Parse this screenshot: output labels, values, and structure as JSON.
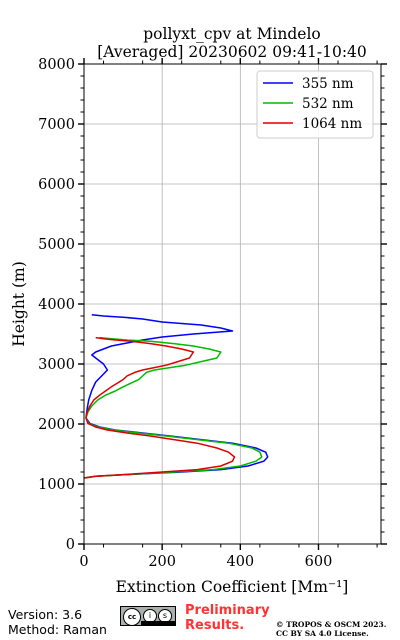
{
  "chart_data": {
    "type": "line",
    "title_lines": [
      "pollyxt_cpv at Mindelo",
      "[Averaged] 20230602 09:41-10:40"
    ],
    "xlabel": "Extinction Coefficient [Mm⁻¹]",
    "ylabel": "Height (m)",
    "xlim": [
      0,
      760
    ],
    "ylim": [
      0,
      8000
    ],
    "xticks": [
      0,
      200,
      400,
      600
    ],
    "yticks": [
      0,
      1000,
      2000,
      3000,
      4000,
      5000,
      6000,
      7000,
      8000
    ],
    "grid": true,
    "legend_position": "top-right",
    "series": [
      {
        "name": "355 nm",
        "color": "#0000ff",
        "points": [
          [
            0,
            1100
          ],
          [
            30,
            1130
          ],
          [
            120,
            1160
          ],
          [
            250,
            1200
          ],
          [
            350,
            1240
          ],
          [
            420,
            1300
          ],
          [
            460,
            1380
          ],
          [
            470,
            1450
          ],
          [
            465,
            1530
          ],
          [
            440,
            1600
          ],
          [
            380,
            1680
          ],
          [
            300,
            1740
          ],
          [
            220,
            1800
          ],
          [
            150,
            1850
          ],
          [
            80,
            1900
          ],
          [
            40,
            1950
          ],
          [
            15,
            2010
          ],
          [
            5,
            2100
          ],
          [
            8,
            2250
          ],
          [
            12,
            2400
          ],
          [
            20,
            2560
          ],
          [
            30,
            2700
          ],
          [
            45,
            2800
          ],
          [
            60,
            2900
          ],
          [
            50,
            3000
          ],
          [
            40,
            3050
          ],
          [
            30,
            3100
          ],
          [
            20,
            3150
          ],
          [
            30,
            3200
          ],
          [
            50,
            3250
          ],
          [
            70,
            3300
          ],
          [
            110,
            3350
          ],
          [
            150,
            3400
          ],
          [
            200,
            3450
          ],
          [
            280,
            3500
          ],
          [
            380,
            3550
          ],
          [
            350,
            3600
          ],
          [
            300,
            3650
          ],
          [
            200,
            3700
          ],
          [
            150,
            3750
          ],
          [
            100,
            3780
          ],
          [
            50,
            3800
          ],
          [
            20,
            3820
          ]
        ]
      },
      {
        "name": "532 nm",
        "color": "#00bb00",
        "points": [
          [
            0,
            1100
          ],
          [
            30,
            1130
          ],
          [
            120,
            1160
          ],
          [
            230,
            1200
          ],
          [
            330,
            1240
          ],
          [
            400,
            1300
          ],
          [
            440,
            1380
          ],
          [
            455,
            1450
          ],
          [
            450,
            1530
          ],
          [
            430,
            1600
          ],
          [
            370,
            1680
          ],
          [
            290,
            1740
          ],
          [
            210,
            1800
          ],
          [
            140,
            1850
          ],
          [
            75,
            1900
          ],
          [
            35,
            1950
          ],
          [
            12,
            2010
          ],
          [
            5,
            2100
          ],
          [
            10,
            2200
          ],
          [
            20,
            2300
          ],
          [
            35,
            2400
          ],
          [
            55,
            2480
          ],
          [
            80,
            2550
          ],
          [
            100,
            2620
          ],
          [
            120,
            2680
          ],
          [
            140,
            2740
          ],
          [
            150,
            2800
          ],
          [
            160,
            2860
          ],
          [
            180,
            2900
          ],
          [
            220,
            2940
          ],
          [
            260,
            2980
          ],
          [
            300,
            3040
          ],
          [
            340,
            3100
          ],
          [
            350,
            3200
          ],
          [
            320,
            3250
          ],
          [
            280,
            3300
          ],
          [
            230,
            3340
          ],
          [
            170,
            3380
          ],
          [
            110,
            3400
          ],
          [
            70,
            3420
          ],
          [
            40,
            3440
          ]
        ]
      },
      {
        "name": "1064 nm",
        "color": "#dd0000",
        "points": [
          [
            0,
            1100
          ],
          [
            30,
            1130
          ],
          [
            110,
            1160
          ],
          [
            200,
            1200
          ],
          [
            290,
            1240
          ],
          [
            350,
            1300
          ],
          [
            380,
            1380
          ],
          [
            385,
            1450
          ],
          [
            370,
            1530
          ],
          [
            340,
            1600
          ],
          [
            290,
            1680
          ],
          [
            230,
            1740
          ],
          [
            170,
            1800
          ],
          [
            110,
            1850
          ],
          [
            60,
            1900
          ],
          [
            30,
            1950
          ],
          [
            10,
            2010
          ],
          [
            5,
            2100
          ],
          [
            8,
            2200
          ],
          [
            15,
            2300
          ],
          [
            25,
            2400
          ],
          [
            40,
            2480
          ],
          [
            55,
            2550
          ],
          [
            70,
            2620
          ],
          [
            85,
            2680
          ],
          [
            100,
            2740
          ],
          [
            110,
            2800
          ],
          [
            130,
            2860
          ],
          [
            150,
            2900
          ],
          [
            180,
            2940
          ],
          [
            210,
            2980
          ],
          [
            240,
            3040
          ],
          [
            270,
            3100
          ],
          [
            280,
            3200
          ],
          [
            250,
            3250
          ],
          [
            210,
            3300
          ],
          [
            170,
            3340
          ],
          [
            120,
            3380
          ],
          [
            80,
            3400
          ],
          [
            50,
            3420
          ],
          [
            30,
            3440
          ]
        ]
      }
    ]
  },
  "footer": {
    "version": "Version: 3.6",
    "method": "Method: Raman",
    "preliminary_line1": "Preliminary",
    "preliminary_line2": "Results.",
    "copyright_line1": "© TROPOS & OSCM 2023.",
    "copyright_line2": "CC BY SA 4.0 License.",
    "badge_cc": "cc",
    "badge_by": "i",
    "badge_sa": "s"
  }
}
